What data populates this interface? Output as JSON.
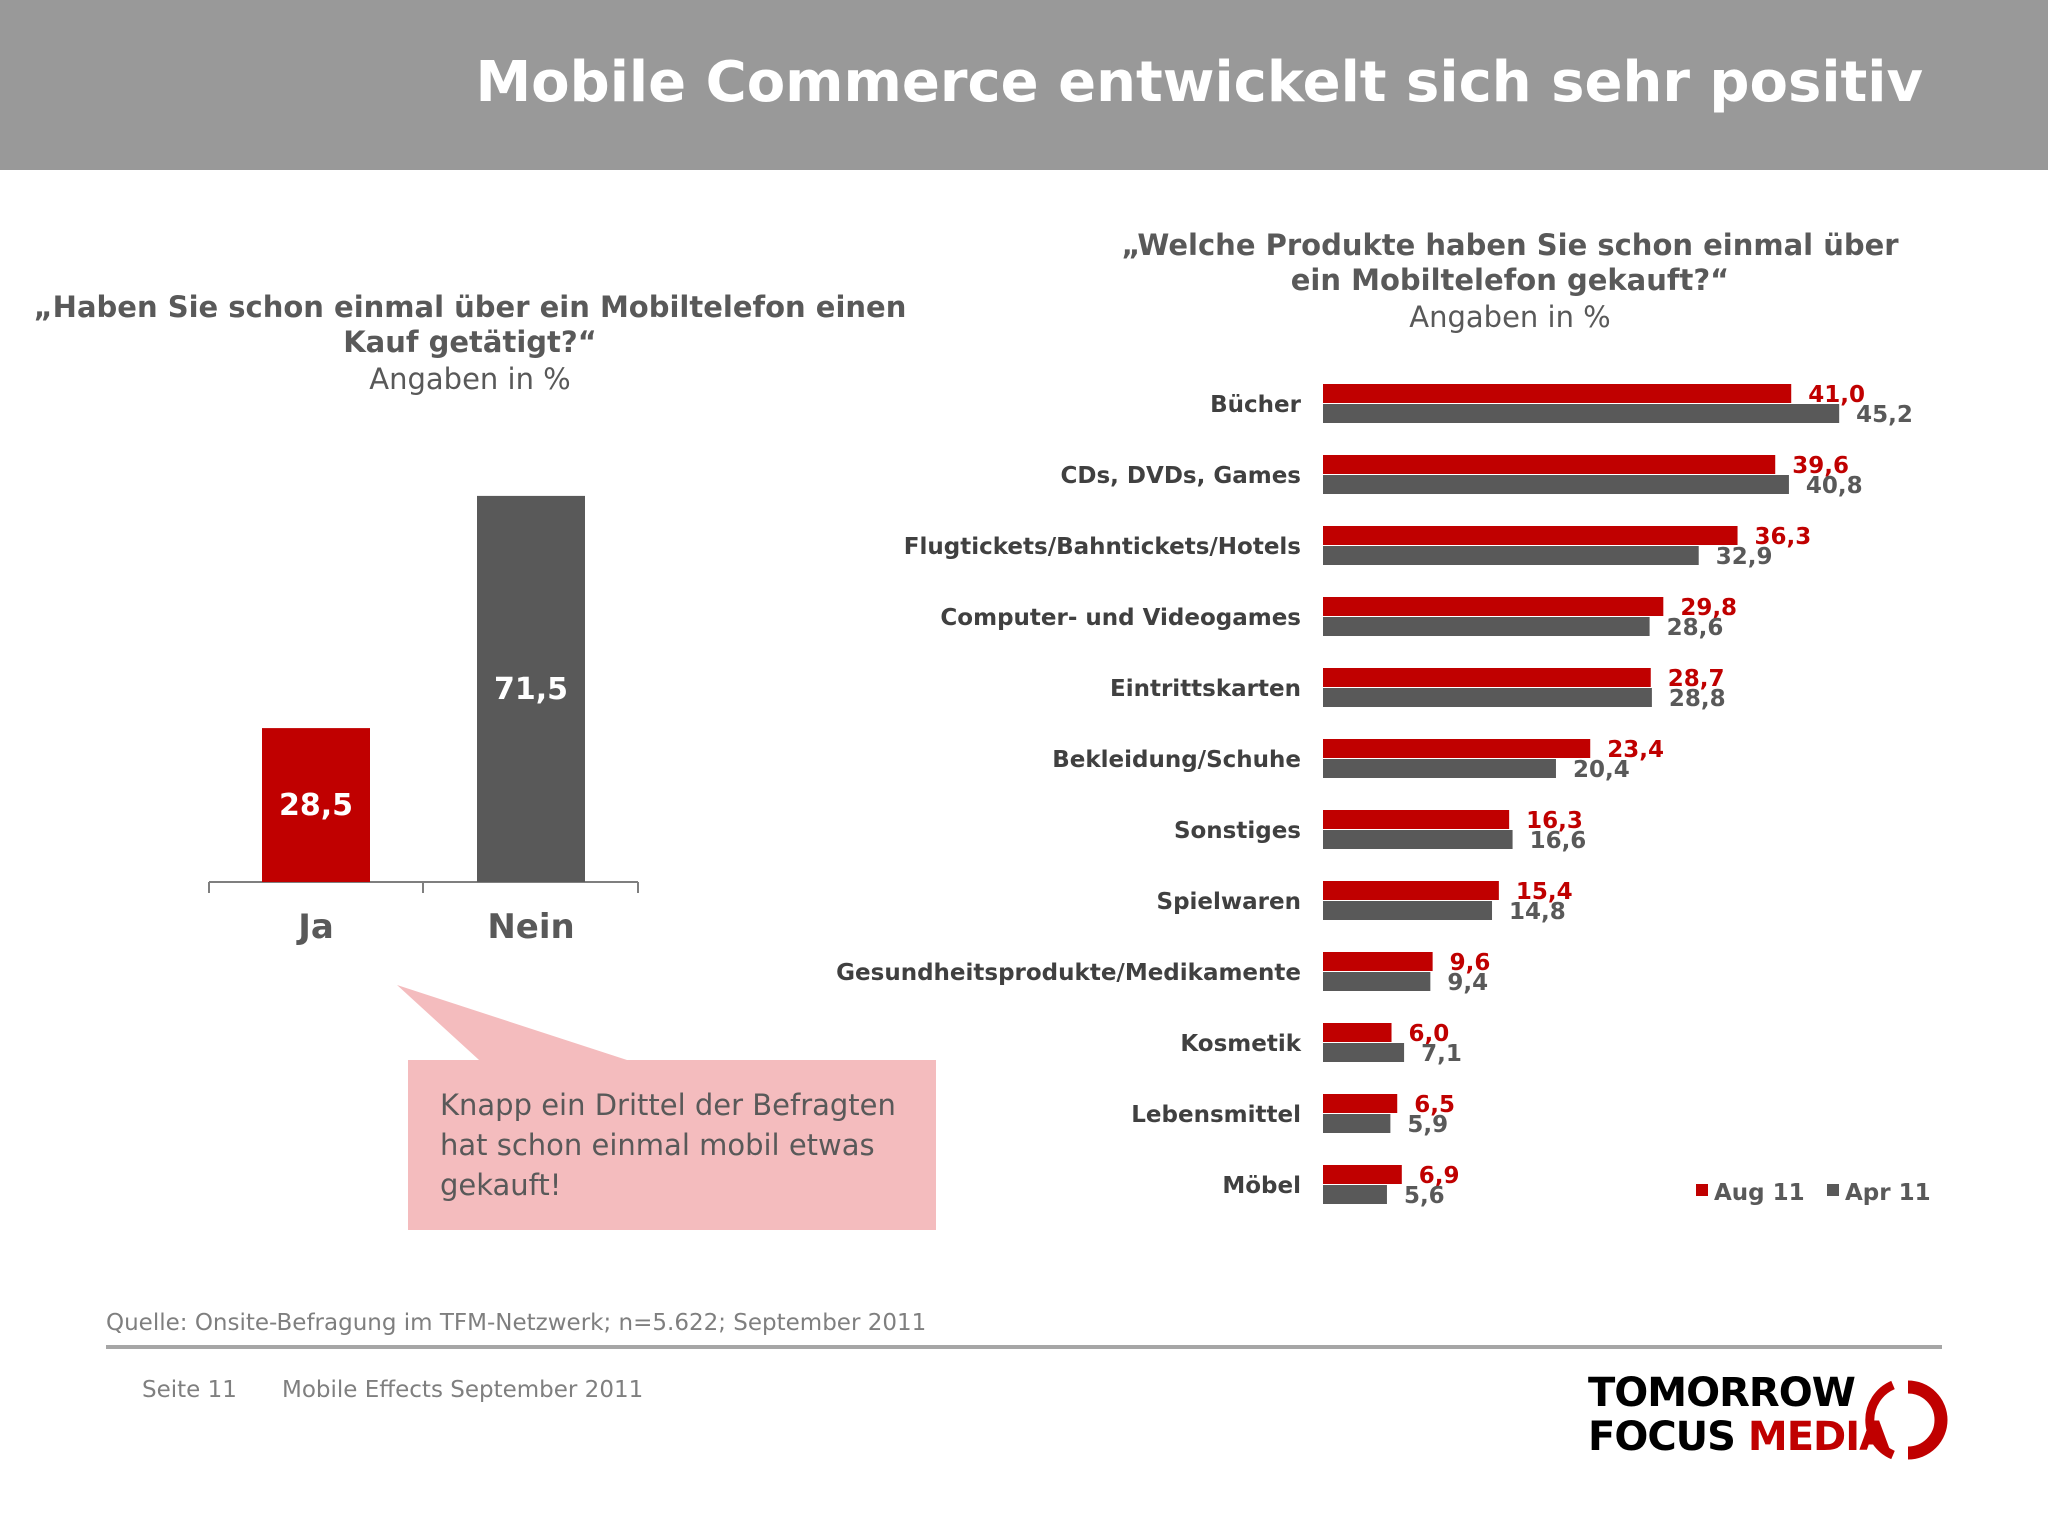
{
  "header": {
    "title": "Mobile Commerce entwickelt sich sehr positiv"
  },
  "left_chart": {
    "question": "„Haben Sie schon einmal über ein Mobiltelefon einen Kauf getätigt?“",
    "subtitle": "Angaben in %"
  },
  "right_chart": {
    "question": "„Welche Produkte haben Sie schon einmal über ein Mobiltelefon gekauft?“",
    "subtitle": "Angaben in %"
  },
  "callout": {
    "text": "Knapp ein Drittel der Befragten hat schon einmal mobil etwas gekauft!"
  },
  "source": "Quelle: Onsite-Befragung im TFM-Netzwerk; n=5.622; September 2011",
  "footer": {
    "page": "Seite 11",
    "text": "Mobile Effects September 2011"
  },
  "logo": {
    "line1": "TOMORROW",
    "focus": "FOCUS",
    "media": "MEDIA"
  },
  "colors": {
    "red": "#c00000",
    "gray": "#595959",
    "header": "#999999",
    "callout": "#f4bcbe"
  },
  "chart_data": [
    {
      "type": "bar",
      "categories": [
        "Ja",
        "Nein"
      ],
      "values": [
        28.5,
        71.5
      ],
      "value_labels": [
        "28,5",
        "71,5"
      ],
      "bar_colors": [
        "#c00000",
        "#595959"
      ]
    },
    {
      "type": "bar",
      "orientation": "horizontal",
      "categories": [
        "Bücher",
        "CDs, DVDs, Games",
        "Flugtickets/Bahntickets/Hotels",
        "Computer- und Videogames",
        "Eintrittskarten",
        "Bekleidung/Schuhe",
        "Sonstiges",
        "Spielwaren",
        "Gesundheitsprodukte/Medikamente",
        "Kosmetik",
        "Lebensmittel",
        "Möbel"
      ],
      "series": [
        {
          "name": "Aug 11",
          "color": "#c00000",
          "values": [
            41.0,
            39.6,
            36.3,
            29.8,
            28.7,
            23.4,
            16.3,
            15.4,
            9.6,
            6.0,
            6.5,
            6.9
          ],
          "labels": [
            "41,0",
            "39,6",
            "36,3",
            "29,8",
            "28,7",
            "23,4",
            "16,3",
            "15,4",
            "9,6",
            "6,0",
            "6,5",
            "6,9"
          ]
        },
        {
          "name": "Apr 11",
          "color": "#595959",
          "values": [
            45.2,
            40.8,
            32.9,
            28.6,
            28.8,
            20.4,
            16.6,
            14.8,
            9.4,
            7.1,
            5.9,
            5.6
          ],
          "labels": [
            "45,2",
            "40,8",
            "32,9",
            "28,6",
            "28,8",
            "20,4",
            "16,6",
            "14,8",
            "9,4",
            "7,1",
            "5,9",
            "5,6"
          ]
        }
      ],
      "legend": "bottom-right"
    }
  ]
}
